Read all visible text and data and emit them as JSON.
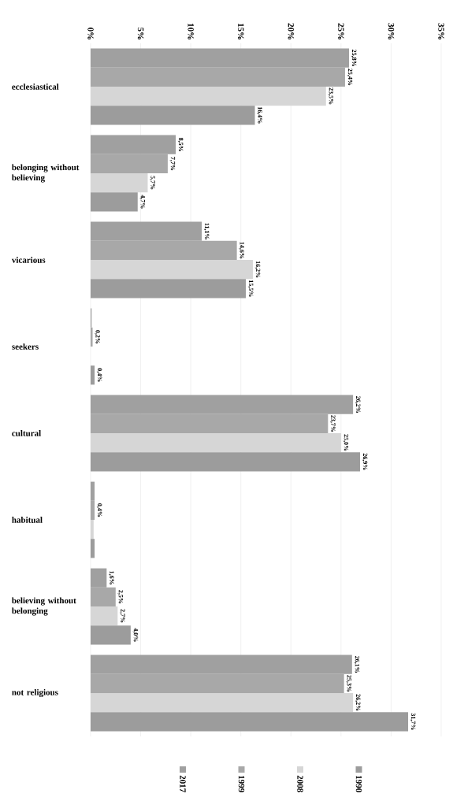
{
  "chart_data": {
    "type": "bar",
    "orientation": "horizontal",
    "categories": [
      "ecclesiastical",
      "belonging without believing",
      "vicarious",
      "seekers",
      "cultural",
      "habitual",
      "believing without belonging",
      "not religious"
    ],
    "series": [
      {
        "name": "2017",
        "color": "#a0a0a0",
        "values": [
          25.8,
          8.5,
          11.1,
          0.1,
          26.2,
          0.4,
          1.6,
          26.1
        ],
        "value_labels": [
          "25,8%",
          "8,5%",
          "11,1%",
          null,
          "26,2%",
          null,
          "1,6%",
          "26,1%"
        ]
      },
      {
        "name": "1999",
        "color": "#a8a8a8",
        "values": [
          25.4,
          7.7,
          14.6,
          0.2,
          23.7,
          0.4,
          2.5,
          25.3
        ],
        "value_labels": [
          "25,4%",
          "7,7%",
          "14,6%",
          "0,2%",
          "23,7%",
          "0,4%",
          "2,5%",
          "25,3%"
        ]
      },
      {
        "name": "2008",
        "color": "#d6d6d6",
        "values": [
          23.5,
          5.7,
          16.2,
          null,
          25.0,
          0.3,
          2.7,
          26.2
        ],
        "value_labels": [
          "23,5%",
          "5,7%",
          "16,2%",
          null,
          "25,0%",
          null,
          "2,7%",
          "26,2%"
        ]
      },
      {
        "name": "1990",
        "color": "#9c9c9c",
        "values": [
          16.4,
          4.7,
          15.5,
          0.4,
          26.9,
          0.4,
          4.0,
          31.7
        ],
        "value_labels": [
          "16,4%",
          "4,7%",
          "15,5%",
          "0,4%",
          "26,9%",
          null,
          "4,0%",
          "31,7%"
        ]
      }
    ],
    "xlim": [
      0,
      35
    ],
    "xticks": [
      {
        "value": 0,
        "label": "0%"
      },
      {
        "value": 5,
        "label": "5%"
      },
      {
        "value": 10,
        "label": "10%"
      },
      {
        "value": 15,
        "label": "15%"
      },
      {
        "value": 20,
        "label": "20%"
      },
      {
        "value": 25,
        "label": "25%"
      },
      {
        "value": 30,
        "label": "30%"
      },
      {
        "value": 35,
        "label": "35%"
      }
    ],
    "grid": "x",
    "legend": "bottom"
  }
}
